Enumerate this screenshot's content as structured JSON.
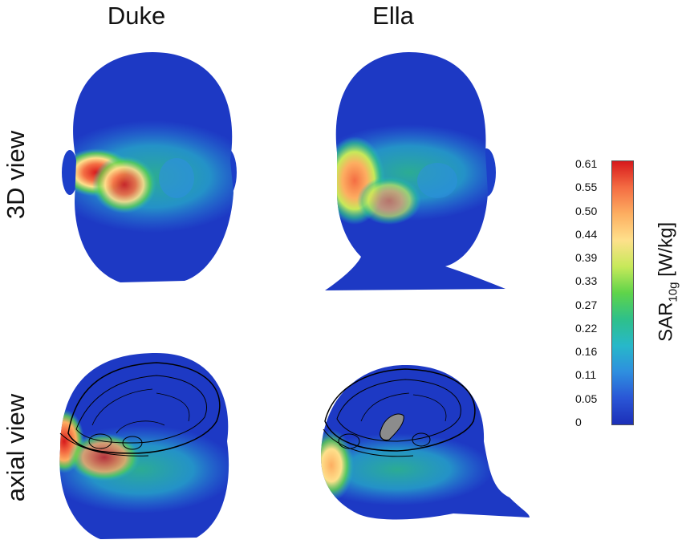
{
  "columns": [
    "Duke",
    "Ella"
  ],
  "rows": [
    "3D view",
    "axial view"
  ],
  "colorbar": {
    "label_main": "SAR",
    "label_sub": "10g",
    "label_unit": " [W/kg]",
    "ticks": [
      "0.61",
      "0.55",
      "0.50",
      "0.44",
      "0.39",
      "0.33",
      "0.27",
      "0.22",
      "0.16",
      "0.11",
      "0.05",
      "0"
    ],
    "colors": [
      "#d7191c",
      "#f46d43",
      "#fdae61",
      "#fee08b",
      "#c7e95a",
      "#5fd44a",
      "#2ec08a",
      "#27b8c9",
      "#2e8fdf",
      "#2a56d6",
      "#1c2fb8"
    ]
  }
}
